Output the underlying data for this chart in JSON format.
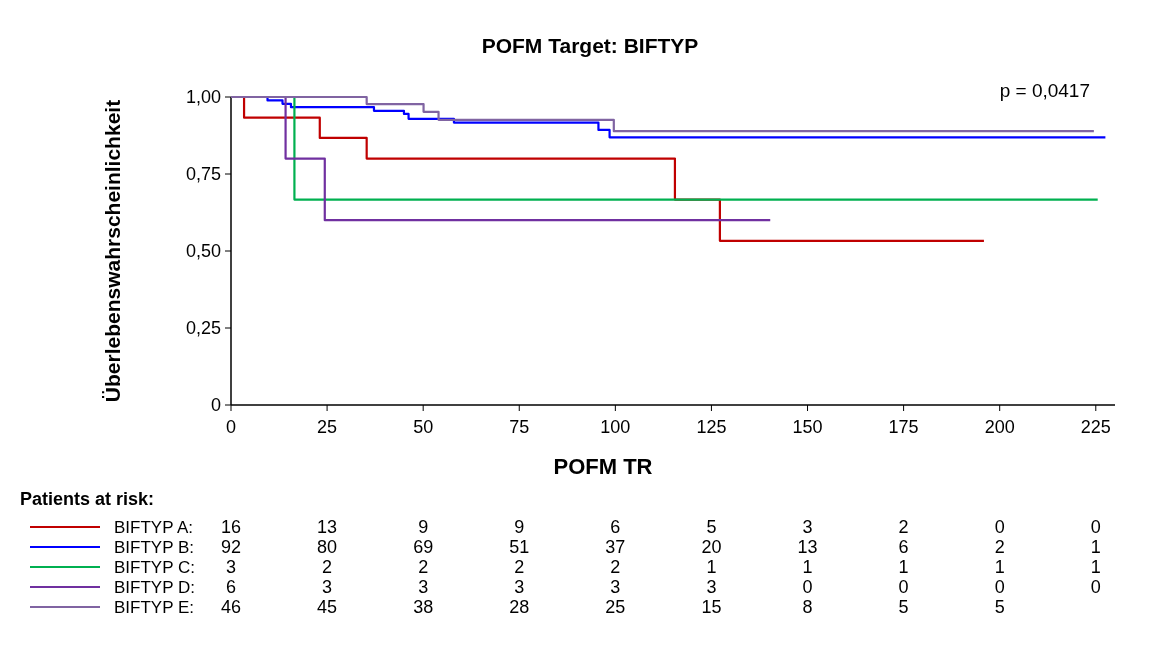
{
  "chart_data": {
    "type": "step",
    "title": "POFM Target: BIFTYP",
    "xlabel": "POFM TR",
    "ylabel": "Überlebenswahrscheinlichkeit",
    "xlim": [
      0,
      230
    ],
    "xticks": [
      0,
      25,
      50,
      75,
      100,
      125,
      150,
      175,
      200,
      225
    ],
    "ylim": [
      0,
      1
    ],
    "yticks": [
      {
        "value": 0,
        "label": "0"
      },
      {
        "value": 0.25,
        "label": "0,25"
      },
      {
        "value": 0.5,
        "label": "0,50"
      },
      {
        "value": 0.75,
        "label": "0,75"
      },
      {
        "value": 1,
        "label": "1,00"
      }
    ],
    "legend": "bottom",
    "grid": false,
    "series": [
      {
        "name": "BIFTYP A:",
        "color": "#c00000",
        "x": [
          0,
          3.4,
          23.1,
          35.3,
          115.5,
          127.2,
          195.9
        ],
        "values": [
          1,
          0.933,
          0.867,
          0.8,
          0.667,
          0.533,
          0.533
        ]
      },
      {
        "name": "BIFTYP B:",
        "color": "#0000ff",
        "x": [
          0,
          9.5,
          13.4,
          15.6,
          37.2,
          45,
          46.2,
          58,
          95.6,
          98.5,
          227.5
        ],
        "values": [
          1,
          0.989,
          0.978,
          0.967,
          0.955,
          0.945,
          0.929,
          0.917,
          0.893,
          0.869,
          0.869
        ]
      },
      {
        "name": "BIFTYP C:",
        "color": "#00b050",
        "x": [
          0,
          16.5,
          225.5
        ],
        "values": [
          1,
          0.667,
          0.667
        ]
      },
      {
        "name": "BIFTYP D:",
        "color": "#7030a0",
        "x": [
          0,
          14.2,
          24.4,
          140.3
        ],
        "values": [
          1,
          0.8,
          0.6,
          0.6
        ]
      },
      {
        "name": "BIFTYP E:",
        "color": "#8064a2",
        "x": [
          0,
          35.3,
          50.1,
          54,
          99.6,
          224.5
        ],
        "values": [
          1,
          0.977,
          0.952,
          0.926,
          0.889,
          0.889
        ]
      }
    ],
    "annotations": [
      "p = 0,0417",
      "Patients at risk:",
      "16 13 9 9 6 5 3 2 0 0",
      "92 80 69 51 37 20 13 6 2 1",
      "3 2 2 2 2 1 1 1 1 1",
      "6 3 3 3 3 3 0 0 0 0",
      "46 45 38 28 25 15 8 5 5"
    ]
  }
}
